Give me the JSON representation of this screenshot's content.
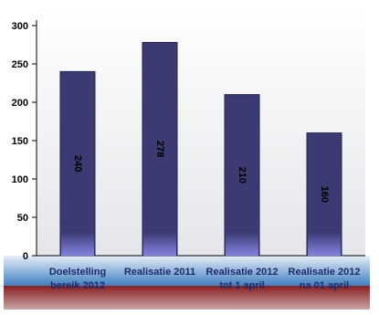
{
  "chart_data": {
    "type": "bar",
    "categories": [
      [
        "Doelstelling",
        "bereik 2012"
      ],
      [
        "Realisatie 2011"
      ],
      [
        "Realisatie 2012",
        "tot 1 april"
      ],
      [
        "Realisatie 2012",
        "na 01 april"
      ]
    ],
    "values": [
      240,
      278,
      210,
      160
    ],
    "data_labels": [
      "240",
      "278",
      "210",
      "160"
    ],
    "ylim": [
      0,
      300
    ],
    "yticks": [
      "0",
      "50",
      "100",
      "150",
      "200",
      "250",
      "300"
    ],
    "title": "",
    "xlabel": "",
    "ylabel": "",
    "grid": false,
    "legend": "none",
    "colors": {
      "bar": "#3b3a72",
      "bar_edge": "#23234f",
      "bar_glow": "#8f8ff2",
      "plot_top": "#ffffff",
      "plot_bottom": "#e4e6ea",
      "band_blue_top": "#e6eef7",
      "band_blue_bottom": "#3f7fc1",
      "band_red_top": "#8a1f1f",
      "band_red_bottom": "#c9a5a5"
    }
  }
}
